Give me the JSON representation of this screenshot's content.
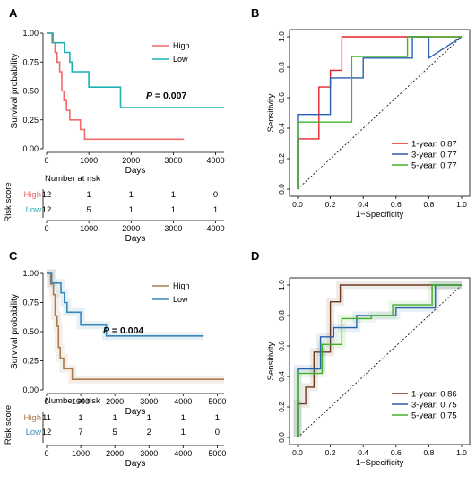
{
  "chart_data": [
    {
      "panel": "A",
      "type": "line",
      "subtype": "kaplan-meier",
      "xlabel": "Days",
      "ylabel": "Survival probability",
      "xlim": [
        0,
        4200
      ],
      "ylim": [
        0,
        1.0
      ],
      "x_ticks": [
        "0",
        "1000",
        "2000",
        "3000",
        "4000"
      ],
      "y_ticks": [
        "0.00",
        "0.25",
        "0.50",
        "0.75",
        "1.00"
      ],
      "legend_position": "top-right",
      "annotation_prefix": "P",
      "annotation_value": " = 0.007",
      "series": [
        {
          "name": "High",
          "color": "#f06b6b",
          "points": [
            [
              0,
              1.0
            ],
            [
              130,
              1.0
            ],
            [
              130,
              0.917
            ],
            [
              200,
              0.917
            ],
            [
              200,
              0.833
            ],
            [
              250,
              0.833
            ],
            [
              250,
              0.75
            ],
            [
              310,
              0.75
            ],
            [
              310,
              0.667
            ],
            [
              360,
              0.667
            ],
            [
              360,
              0.5
            ],
            [
              410,
              0.5
            ],
            [
              410,
              0.417
            ],
            [
              470,
              0.417
            ],
            [
              470,
              0.333
            ],
            [
              550,
              0.333
            ],
            [
              550,
              0.25
            ],
            [
              800,
              0.25
            ],
            [
              800,
              0.167
            ],
            [
              900,
              0.167
            ],
            [
              900,
              0.083
            ],
            [
              3250,
              0.083
            ]
          ]
        },
        {
          "name": "Low",
          "color": "#1fb2b2",
          "points": [
            [
              0,
              1.0
            ],
            [
              150,
              1.0
            ],
            [
              150,
              0.917
            ],
            [
              420,
              0.917
            ],
            [
              420,
              0.833
            ],
            [
              550,
              0.833
            ],
            [
              550,
              0.75
            ],
            [
              600,
              0.75
            ],
            [
              600,
              0.667
            ],
            [
              1000,
              0.667
            ],
            [
              1000,
              0.533
            ],
            [
              1750,
              0.533
            ],
            [
              1750,
              0.356
            ],
            [
              4200,
              0.356
            ]
          ]
        }
      ],
      "risk_table": {
        "title": "Number at risk",
        "ylabel": "Risk score",
        "xlabel": "Days",
        "x_ticks": [
          "0",
          "1000",
          "2000",
          "3000",
          "4000"
        ],
        "rows": [
          {
            "name": "High",
            "color": "#f06b6b",
            "values": [
              "12",
              "1",
              "1",
              "1",
              "0"
            ]
          },
          {
            "name": "Low",
            "color": "#1fb2b2",
            "values": [
              "12",
              "5",
              "1",
              "1",
              "1"
            ]
          }
        ]
      }
    },
    {
      "panel": "B",
      "type": "line",
      "subtype": "roc",
      "xlabel": "1−Specificity",
      "ylabel": "Sensitivity",
      "xlim": [
        0,
        1.0
      ],
      "ylim": [
        0,
        1.0
      ],
      "x_ticks": [
        "0.0",
        "0.2",
        "0.4",
        "0.6",
        "0.8",
        "1.0"
      ],
      "y_ticks": [
        "0.0",
        "0.2",
        "0.4",
        "0.6",
        "0.8",
        "1.0"
      ],
      "legend_position": "bottom-right",
      "series": [
        {
          "name": "1-year: 0.87",
          "color": "#e8202a",
          "points": [
            [
              0,
              0
            ],
            [
              0,
              0.33
            ],
            [
              0.13,
              0.33
            ],
            [
              0.13,
              0.67
            ],
            [
              0.2,
              0.67
            ],
            [
              0.2,
              0.78
            ],
            [
              0.27,
              0.78
            ],
            [
              0.27,
              1.0
            ],
            [
              1.0,
              1.0
            ]
          ]
        },
        {
          "name": "3-year: 0.77",
          "color": "#2a5fb0",
          "points": [
            [
              0,
              0
            ],
            [
              0,
              0.49
            ],
            [
              0.1,
              0.49
            ],
            [
              0.2,
              0.49
            ],
            [
              0.2,
              0.73
            ],
            [
              0.4,
              0.73
            ],
            [
              0.4,
              0.86
            ],
            [
              0.7,
              0.86
            ],
            [
              0.7,
              1.0
            ],
            [
              0.8,
              1.0
            ],
            [
              0.8,
              0.86
            ],
            [
              0.8,
              0.86
            ],
            [
              1.0,
              1.0
            ]
          ]
        },
        {
          "name": "5-year: 0.77",
          "color": "#43b02a",
          "points": [
            [
              0,
              0
            ],
            [
              0,
              0.44
            ],
            [
              0.33,
              0.44
            ],
            [
              0.33,
              0.87
            ],
            [
              0.67,
              0.87
            ],
            [
              0.67,
              1.0
            ],
            [
              1.0,
              1.0
            ]
          ]
        }
      ]
    },
    {
      "panel": "C",
      "type": "line",
      "subtype": "kaplan-meier",
      "xlabel": "Days",
      "ylabel": "Survival probability",
      "xlim": [
        0,
        5200
      ],
      "ylim": [
        0,
        1.0
      ],
      "x_ticks": [
        "0",
        "1000",
        "2000",
        "3000",
        "4000",
        "5000"
      ],
      "y_ticks": [
        "0.00",
        "0.25",
        "0.50",
        "0.75",
        "1.00"
      ],
      "legend_position": "top-right",
      "annotation_prefix": "P",
      "annotation_value": " = 0.004",
      "series": [
        {
          "name": "High",
          "color": "#a97b50",
          "points": [
            [
              0,
              1.0
            ],
            [
              120,
              1.0
            ],
            [
              120,
              0.909
            ],
            [
              200,
              0.909
            ],
            [
              200,
              0.818
            ],
            [
              250,
              0.818
            ],
            [
              250,
              0.636
            ],
            [
              310,
              0.636
            ],
            [
              310,
              0.545
            ],
            [
              350,
              0.545
            ],
            [
              350,
              0.364
            ],
            [
              400,
              0.364
            ],
            [
              400,
              0.273
            ],
            [
              500,
              0.273
            ],
            [
              500,
              0.182
            ],
            [
              750,
              0.182
            ],
            [
              750,
              0.091
            ],
            [
              5200,
              0.091
            ]
          ]
        },
        {
          "name": "Low",
          "color": "#3a87b8",
          "points": [
            [
              0,
              1.0
            ],
            [
              150,
              1.0
            ],
            [
              150,
              0.917
            ],
            [
              420,
              0.917
            ],
            [
              420,
              0.833
            ],
            [
              520,
              0.833
            ],
            [
              520,
              0.75
            ],
            [
              600,
              0.75
            ],
            [
              600,
              0.667
            ],
            [
              1000,
              0.667
            ],
            [
              1000,
              0.556
            ],
            [
              1750,
              0.556
            ],
            [
              1750,
              0.463
            ],
            [
              4600,
              0.463
            ]
          ]
        }
      ],
      "risk_table": {
        "title": "Number at risk",
        "ylabel": "Risk score",
        "xlabel": "Days",
        "x_ticks": [
          "0",
          "1000",
          "2000",
          "3000",
          "4000",
          "5000"
        ],
        "rows": [
          {
            "name": "High",
            "color": "#a97b50",
            "values": [
              "11",
              "1",
              "1",
              "1",
              "1",
              "1"
            ]
          },
          {
            "name": "Low",
            "color": "#3a87b8",
            "values": [
              "12",
              "7",
              "5",
              "2",
              "1",
              "0"
            ]
          }
        ]
      }
    },
    {
      "panel": "D",
      "type": "line",
      "subtype": "roc",
      "xlabel": "1−Specificity",
      "ylabel": "Sensitivity",
      "xlim": [
        0,
        1.0
      ],
      "ylim": [
        0,
        1.0
      ],
      "x_ticks": [
        "0.0",
        "0.2",
        "0.4",
        "0.6",
        "0.8",
        "1.0"
      ],
      "y_ticks": [
        "0.0",
        "0.2",
        "0.4",
        "0.6",
        "0.8",
        "1.0"
      ],
      "legend_position": "bottom-right",
      "series": [
        {
          "name": "1-year: 0.86",
          "color": "#6b3a1f",
          "points": [
            [
              0,
              0
            ],
            [
              0,
              0.22
            ],
            [
              0.05,
              0.22
            ],
            [
              0.05,
              0.33
            ],
            [
              0.1,
              0.33
            ],
            [
              0.1,
              0.56
            ],
            [
              0.2,
              0.56
            ],
            [
              0.2,
              0.89
            ],
            [
              0.26,
              0.89
            ],
            [
              0.26,
              1.0
            ],
            [
              1.0,
              1.0
            ]
          ]
        },
        {
          "name": "3-year: 0.75",
          "color": "#2a5fb0",
          "points": [
            [
              0,
              0
            ],
            [
              0,
              0.45
            ],
            [
              0.14,
              0.45
            ],
            [
              0.14,
              0.66
            ],
            [
              0.22,
              0.66
            ],
            [
              0.22,
              0.72
            ],
            [
              0.36,
              0.72
            ],
            [
              0.36,
              0.8
            ],
            [
              0.6,
              0.8
            ],
            [
              0.6,
              0.85
            ],
            [
              0.84,
              0.85
            ],
            [
              0.84,
              0.87
            ],
            [
              0.84,
              1.0
            ],
            [
              1.0,
              1.0
            ]
          ]
        },
        {
          "name": "5-year: 0.75",
          "color": "#43b02a",
          "points": [
            [
              0,
              0
            ],
            [
              0,
              0.42
            ],
            [
              0.15,
              0.42
            ],
            [
              0.15,
              0.61
            ],
            [
              0.27,
              0.61
            ],
            [
              0.27,
              0.78
            ],
            [
              0.45,
              0.78
            ],
            [
              0.45,
              0.8
            ],
            [
              0.58,
              0.8
            ],
            [
              0.58,
              0.87
            ],
            [
              0.82,
              0.87
            ],
            [
              0.82,
              1.0
            ],
            [
              1.0,
              1.0
            ]
          ]
        }
      ]
    }
  ]
}
